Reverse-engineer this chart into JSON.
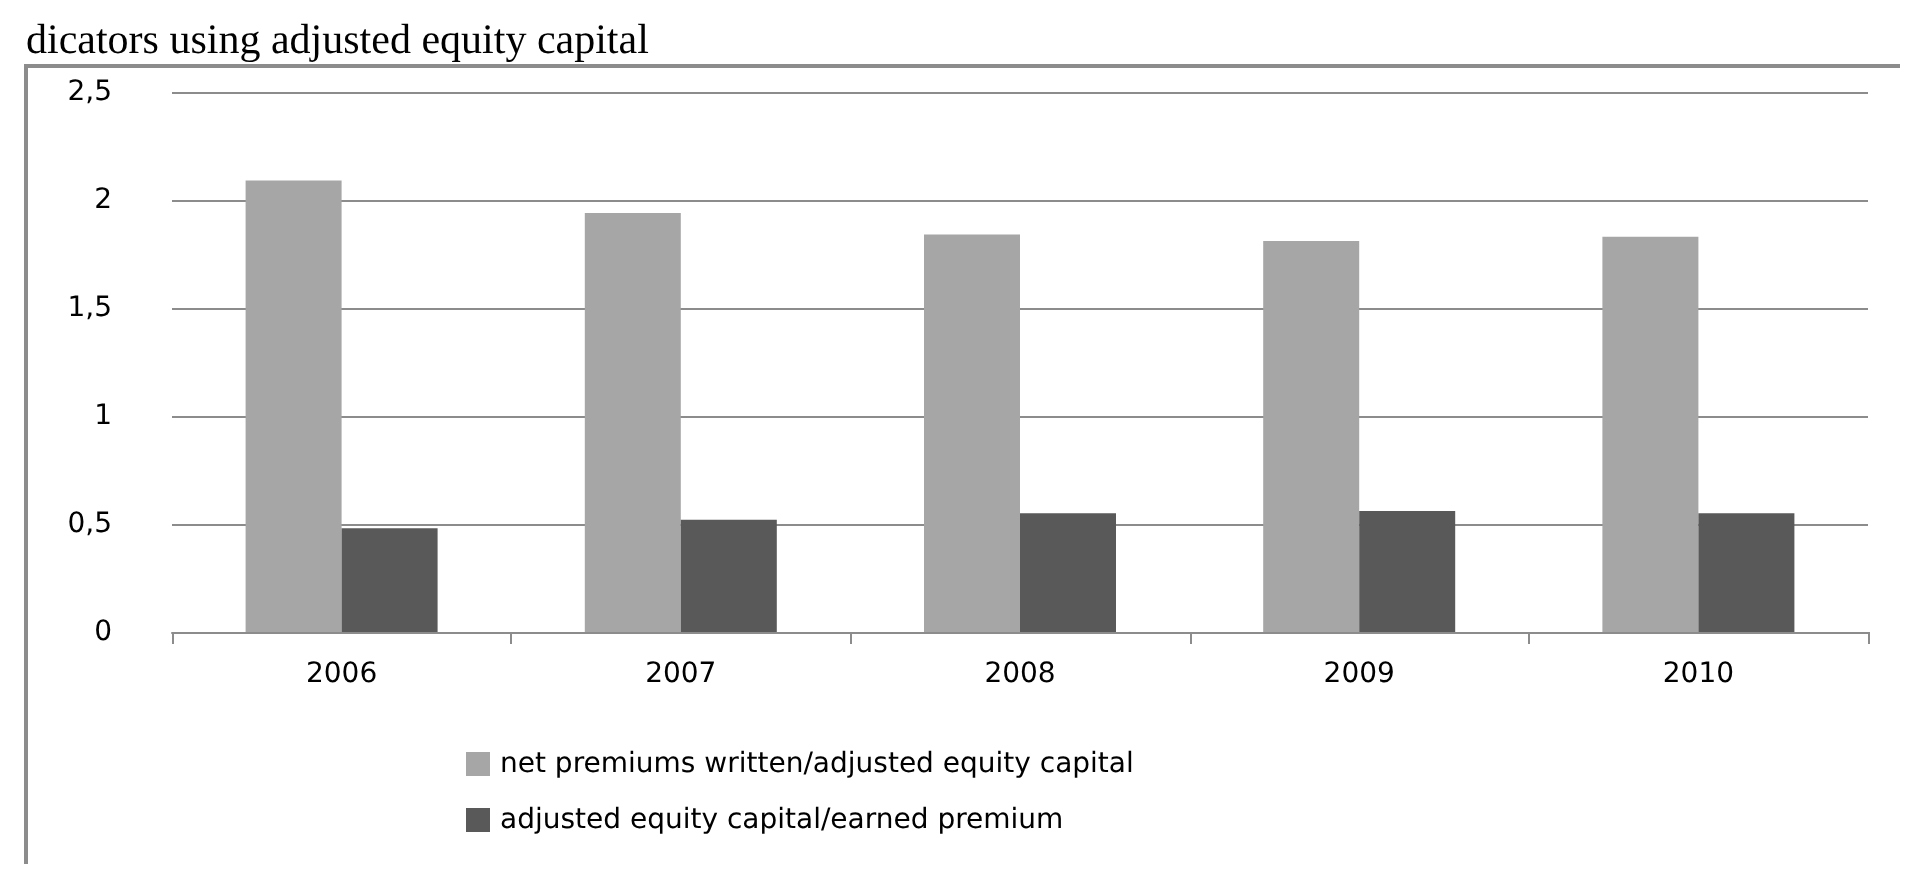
{
  "chart_data": {
    "type": "bar",
    "title": "dicators using adjusted equity capital",
    "categories": [
      "2006",
      "2007",
      "2008",
      "2009",
      "2010"
    ],
    "series": [
      {
        "name": "net premiums written/adjusted equity capital",
        "color": "#a6a6a6",
        "values": [
          2.09,
          1.94,
          1.84,
          1.81,
          1.83
        ]
      },
      {
        "name": "adjusted equity capital/earned premium",
        "color": "#595959",
        "values": [
          0.48,
          0.52,
          0.55,
          0.56,
          0.55
        ]
      }
    ],
    "ylim": [
      0,
      2.5
    ],
    "yticks": [
      0,
      {
        "value": 0.5,
        "label": "0,5"
      },
      1,
      {
        "value": 1.5,
        "label": "1,5"
      },
      2,
      {
        "value": 2.5,
        "label": "2,5"
      }
    ],
    "grid": "y",
    "legend": "bottom"
  }
}
